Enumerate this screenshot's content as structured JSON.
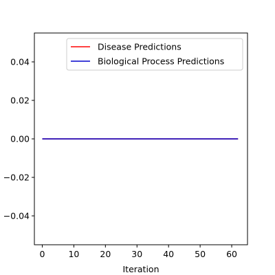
{
  "chart_data": {
    "type": "line",
    "title": "",
    "xlabel": "Iteration",
    "ylabel": "",
    "xlim": [
      -2.5,
      65
    ],
    "ylim": [
      -0.055,
      0.055
    ],
    "x_ticks": [
      0,
      10,
      20,
      30,
      40,
      50,
      60
    ],
    "x_tick_labels": [
      "0",
      "10",
      "20",
      "30",
      "40",
      "50",
      "60"
    ],
    "y_ticks": [
      -0.04,
      -0.02,
      0.0,
      0.02,
      0.04
    ],
    "y_tick_labels": [
      "−0.04",
      "−0.02",
      "0.00",
      "0.02",
      "0.04"
    ],
    "grid": false,
    "legend_position": "top-right",
    "series": [
      {
        "name": "Disease Predictions",
        "color": "#ff0000",
        "x": [
          0,
          62
        ],
        "y": [
          0,
          0
        ]
      },
      {
        "name": "Biological Process Predictions",
        "color": "#0000cc",
        "x": [
          0,
          62
        ],
        "y": [
          0,
          0
        ]
      }
    ]
  }
}
